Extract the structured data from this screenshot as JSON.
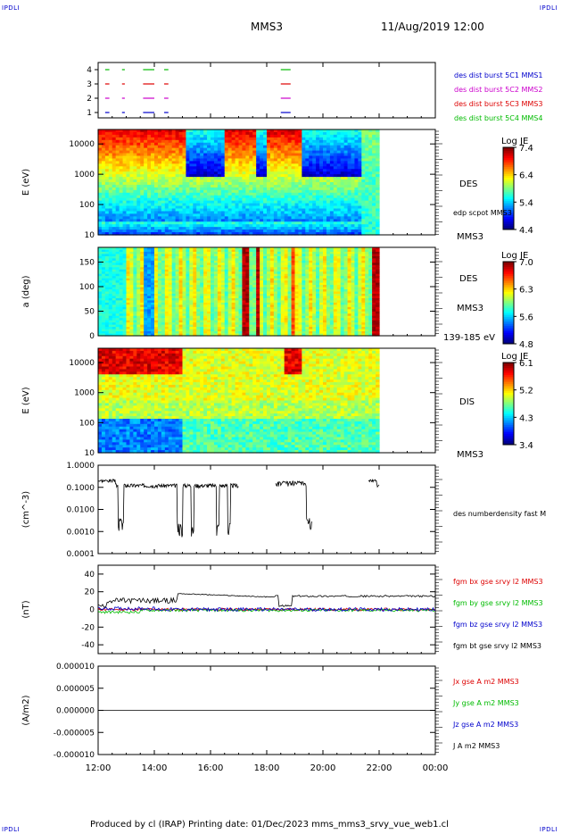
{
  "header": {
    "corner_left": "IPDLI",
    "corner_right": "IPDLI",
    "title": "MMS3",
    "date": "11/Aug/2019 12:00"
  },
  "footer": {
    "text": "Produced by cl (IRAP)   Printing date: 01/Dec/2023   mms_mms3_srvy_vue_web1.cl",
    "corner_left": "IPDLI",
    "corner_right": "IPDLI"
  },
  "colors": {
    "c1": "#0000cc",
    "c2": "#cc00cc",
    "c3": "#dd0000",
    "c4": "#00bb00",
    "black": "#000000"
  },
  "chart_data": [
    {
      "id": "burst",
      "type": "scatter",
      "yticks": [
        "4",
        "3",
        "2",
        "1"
      ],
      "legend": [
        {
          "name": "des dist burst 5C1 MMS1",
          "color": "#0000cc"
        },
        {
          "name": "des dist burst 5C2 MMS2",
          "color": "#cc00cc"
        },
        {
          "name": "des dist burst 5C3 MMS3",
          "color": "#dd0000"
        },
        {
          "name": "des dist burst 5C4 MMS4",
          "color": "#00bb00"
        }
      ],
      "segments_hours": [
        [
          12.25,
          12.4
        ],
        [
          12.85,
          12.95
        ],
        [
          13.6,
          14.0
        ],
        [
          14.35,
          14.5
        ],
        [
          18.5,
          18.85
        ]
      ]
    },
    {
      "id": "des-energy",
      "type": "heatmap",
      "ylabel": "E (eV)",
      "yscale": "log",
      "ylim": [
        10,
        30000
      ],
      "yticks": [
        "10000",
        "1000",
        "100",
        "10"
      ],
      "colorbar": {
        "label": "Log JE",
        "ticks": [
          "7.4",
          "6.4",
          "5.4",
          "4.4"
        ]
      },
      "side_labels": [
        "DES",
        "edp scpot MMS3",
        "MMS3"
      ]
    },
    {
      "id": "des-pitch",
      "type": "heatmap",
      "ylabel": "a (deg)",
      "ylim": [
        0,
        180
      ],
      "yticks": [
        "150",
        "100",
        "50",
        "0"
      ],
      "colorbar": {
        "label": "Log JE",
        "ticks": [
          "7.0",
          "6.3",
          "5.6",
          "4.8"
        ]
      },
      "side_labels": [
        "DES",
        "MMS3",
        "139-185 eV"
      ]
    },
    {
      "id": "dis-energy",
      "type": "heatmap",
      "ylabel": "E (eV)",
      "yscale": "log",
      "ylim": [
        10,
        30000
      ],
      "yticks": [
        "10000",
        "1000",
        "100",
        "10"
      ],
      "colorbar": {
        "label": "Log JE",
        "ticks": [
          "6.1",
          "5.2",
          "4.3",
          "3.4"
        ]
      },
      "side_labels": [
        "DIS",
        "MMS3"
      ]
    },
    {
      "id": "density",
      "type": "line",
      "ylabel": "(cm^-3)",
      "yscale": "log",
      "ylim": [
        0.0001,
        1.0
      ],
      "yticks": [
        "1.0000",
        "0.1000",
        "0.0100",
        "0.0010",
        "0.0001"
      ],
      "series": [
        {
          "name": "des numberdensity fast M",
          "color": "#000000"
        }
      ]
    },
    {
      "id": "bfield",
      "type": "line",
      "ylabel": "(nT)",
      "ylim": [
        -50,
        50
      ],
      "yticks": [
        "40",
        "20",
        "0",
        "-20",
        "-40"
      ],
      "series": [
        {
          "name": "fgm bx gse srvy l2 MMS3",
          "color": "#dd0000"
        },
        {
          "name": "fgm by gse srvy l2 MMS3",
          "color": "#00bb00"
        },
        {
          "name": "fgm bz gse srvy l2 MMS3",
          "color": "#0000cc"
        },
        {
          "name": "fgm bt gse srvy l2 MMS3",
          "color": "#000000"
        }
      ]
    },
    {
      "id": "current",
      "type": "line",
      "ylabel": "(A/m2)",
      "ylim": [
        -1e-05,
        1e-05
      ],
      "yticks": [
        "0.000010",
        "0.000005",
        "0.000000",
        "-0.000005",
        "-0.000010"
      ],
      "series": [
        {
          "name": "Jx gse A m2 MMS3",
          "color": "#dd0000"
        },
        {
          "name": "Jy gse A m2 MMS3",
          "color": "#00bb00"
        },
        {
          "name": "Jz gse A m2 MMS3",
          "color": "#0000cc"
        },
        {
          "name": "J A m2 MMS3",
          "color": "#000000"
        }
      ]
    }
  ],
  "xaxis": {
    "ticks": [
      "12:00",
      "14:00",
      "16:00",
      "18:00",
      "20:00",
      "22:00",
      "00:00"
    ],
    "hours": [
      12,
      14,
      16,
      18,
      20,
      22,
      24
    ],
    "xlim": [
      12,
      24
    ]
  }
}
